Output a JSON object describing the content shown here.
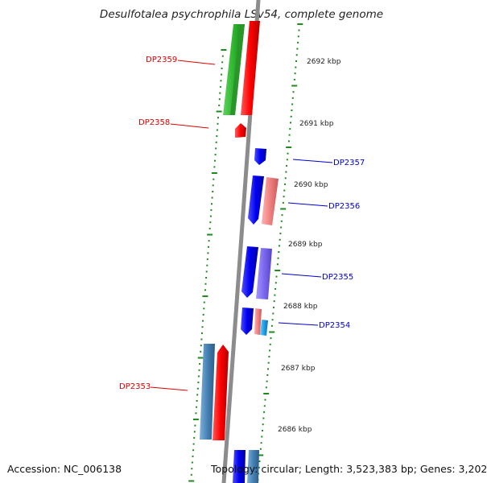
{
  "title": "Desulfotalea psychrophila LSv54, complete genome",
  "footer": {
    "accession": "Accession: NC_006138",
    "summary": "Topology: circular; Length: 3,523,383 bp; Genes: 3,202"
  },
  "ticks": [
    "2692 kbp",
    "2691 kbp",
    "2690 kbp",
    "2689 kbp",
    "2688 kbp",
    "2687 kbp",
    "2686 kbp"
  ],
  "gene_labels": [
    {
      "text": "DP2359",
      "color": "#dd0000"
    },
    {
      "text": "DP2358",
      "color": "#dd0000"
    },
    {
      "text": "DP2357",
      "color": "#0000cc"
    },
    {
      "text": "DP2356",
      "color": "#0000cc"
    },
    {
      "text": "DP2355",
      "color": "#0000cc"
    },
    {
      "text": "DP2354",
      "color": "#0000cc"
    },
    {
      "text": "DP2353",
      "color": "#dd0000"
    }
  ],
  "colors": {
    "backbone": "#8c8c8c",
    "tick": "#1f8a1f",
    "forward_cds": "#ff0000",
    "reverse_cds": "#0000ff",
    "green_feature": "#2db52d",
    "pink_feature": "#f08080",
    "purple_feature": "#7b68ee",
    "steelblue_feature": "#4682b4",
    "cyan_feature": "#1ea0e6"
  }
}
